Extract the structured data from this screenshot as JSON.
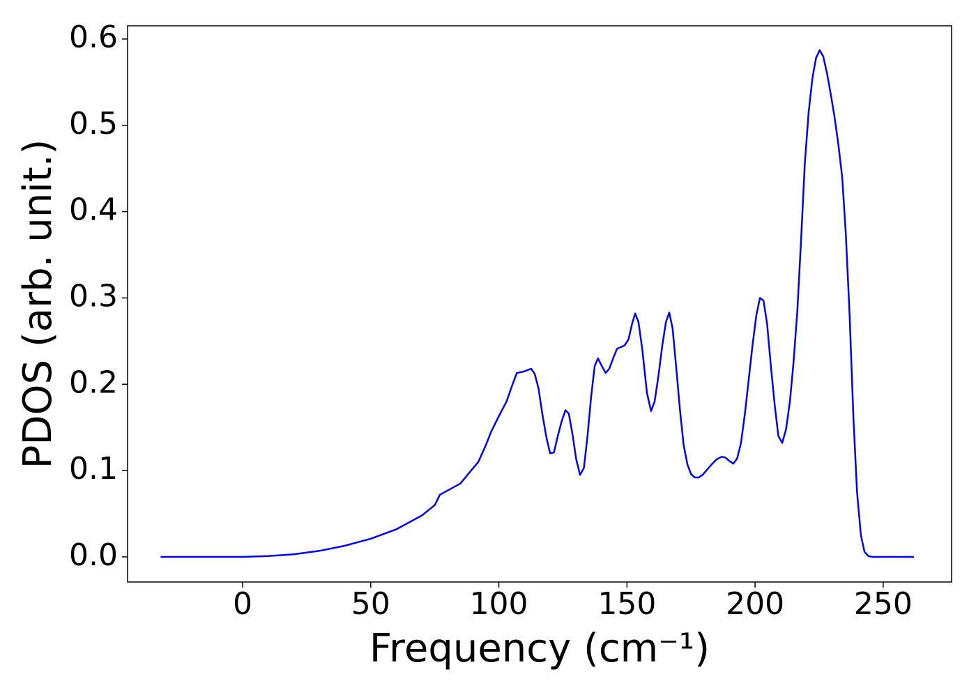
{
  "chart_data": {
    "type": "line",
    "xlabel": "Frequency (cm⁻¹)",
    "ylabel": "PDOS (arb. unit.)",
    "x": [
      -32,
      -25,
      -20,
      -15,
      -10,
      -5,
      0,
      10,
      20,
      30,
      40,
      50,
      60,
      70,
      75,
      77,
      85,
      90,
      92,
      95,
      97,
      100,
      103,
      105,
      107,
      110,
      112.6,
      114,
      115.5,
      117,
      118.6,
      120,
      121.5,
      123,
      124.5,
      126,
      127.3,
      128.7,
      130.2,
      131.7,
      133.2,
      134.6,
      136,
      137.4,
      138.7,
      140.2,
      141.7,
      143.1,
      144.6,
      146.1,
      147.6,
      149.1,
      150.6,
      152,
      153.2,
      154.5,
      156,
      157.8,
      159.4,
      160.8,
      162.3,
      163.8,
      165.2,
      166.5,
      167.8,
      169.2,
      170.7,
      172.1,
      173.6,
      175,
      176.5,
      178,
      179.5,
      181,
      183,
      185,
      187,
      188.5,
      190,
      191.5,
      193,
      194.5,
      196,
      197.5,
      199,
      200.5,
      201.9,
      203.3,
      204.7,
      206.2,
      207.7,
      209.1,
      210.6,
      212.1,
      213.6,
      215,
      216.5,
      218,
      219.4,
      220.9,
      222.4,
      223.8,
      225.2,
      226.6,
      228.1,
      229.6,
      231,
      232.5,
      234,
      235.4,
      236.9,
      238.4,
      239.8,
      241.3,
      242.7,
      244.2,
      245.7,
      247,
      250,
      262
    ],
    "values": [
      0,
      0,
      0,
      0,
      0,
      0,
      0,
      0.001,
      0.003,
      0.007,
      0.013,
      0.021,
      0.032,
      0.048,
      0.06,
      0.072,
      0.085,
      0.103,
      0.11,
      0.13,
      0.145,
      0.163,
      0.18,
      0.197,
      0.213,
      0.215,
      0.218,
      0.212,
      0.195,
      0.165,
      0.138,
      0.12,
      0.121,
      0.14,
      0.157,
      0.17,
      0.166,
      0.143,
      0.113,
      0.095,
      0.103,
      0.14,
      0.185,
      0.221,
      0.23,
      0.221,
      0.213,
      0.218,
      0.23,
      0.241,
      0.243,
      0.245,
      0.252,
      0.27,
      0.282,
      0.272,
      0.24,
      0.19,
      0.169,
      0.18,
      0.21,
      0.245,
      0.272,
      0.283,
      0.265,
      0.22,
      0.17,
      0.13,
      0.107,
      0.096,
      0.092,
      0.092,
      0.095,
      0.1,
      0.107,
      0.113,
      0.116,
      0.115,
      0.111,
      0.108,
      0.114,
      0.132,
      0.165,
      0.205,
      0.245,
      0.28,
      0.3,
      0.297,
      0.27,
      0.22,
      0.175,
      0.14,
      0.132,
      0.148,
      0.18,
      0.225,
      0.285,
      0.37,
      0.455,
      0.515,
      0.555,
      0.578,
      0.587,
      0.58,
      0.56,
      0.535,
      0.51,
      0.478,
      0.44,
      0.375,
      0.28,
      0.16,
      0.075,
      0.025,
      0.006,
      0.001,
      0,
      0,
      0,
      0
    ],
    "color": "#0000ff",
    "xlim": [
      -44.9,
      276.7
    ],
    "ylim": [
      -0.0291,
      0.6153
    ],
    "xticks": [
      0,
      50,
      100,
      150,
      200,
      250
    ],
    "yticks": [
      {
        "value": 0,
        "label": "0.0"
      },
      0.1,
      0.2,
      0.3,
      0.4,
      0.5,
      0.6
    ]
  }
}
